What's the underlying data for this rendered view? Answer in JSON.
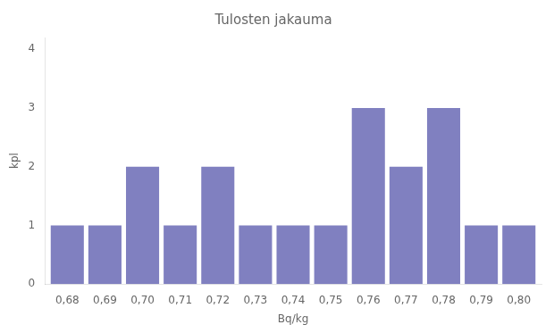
{
  "chart_data": {
    "type": "bar",
    "title": "Tulosten jakauma",
    "xlabel": "Bq/kg",
    "ylabel": "kpl",
    "x": [
      0.68,
      0.69,
      0.7,
      0.71,
      0.72,
      0.73,
      0.74,
      0.75,
      0.76,
      0.77,
      0.78,
      0.79,
      0.8
    ],
    "values": [
      1,
      1,
      2,
      1,
      2,
      1,
      1,
      1,
      3,
      2,
      3,
      1,
      1
    ],
    "color": "#8080c0",
    "xlim": [
      0.674,
      0.806
    ],
    "ylim": [
      0,
      4.2
    ],
    "xticks": [
      {
        "value": 0.68,
        "label": "0,68"
      },
      {
        "value": 0.69,
        "label": "0,69"
      },
      {
        "value": 0.7,
        "label": "0,70"
      },
      {
        "value": 0.71,
        "label": "0,71"
      },
      {
        "value": 0.72,
        "label": "0,72"
      },
      {
        "value": 0.73,
        "label": "0,73"
      },
      {
        "value": 0.74,
        "label": "0,74"
      },
      {
        "value": 0.75,
        "label": "0,75"
      },
      {
        "value": 0.76,
        "label": "0,76"
      },
      {
        "value": 0.77,
        "label": "0,77"
      },
      {
        "value": 0.78,
        "label": "0,78"
      },
      {
        "value": 0.79,
        "label": "0,79"
      },
      {
        "value": 0.8,
        "label": "0,80"
      }
    ],
    "yticks": [
      0,
      1,
      2,
      3,
      4
    ],
    "grid": false
  }
}
